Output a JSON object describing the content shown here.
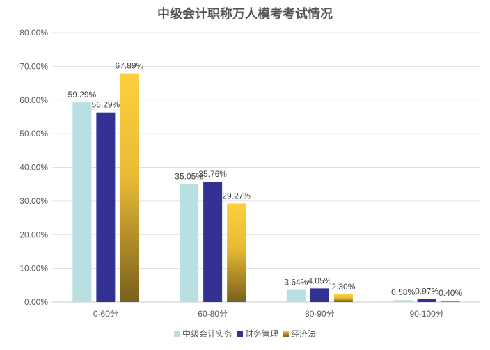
{
  "chart_data": {
    "type": "bar",
    "title": "中级会计职称万人模考考试情况",
    "categories": [
      "0-60分",
      "60-80分",
      "80-90分",
      "90-100分"
    ],
    "series": [
      {
        "name": "中级会计实务",
        "values": [
          59.29,
          35.05,
          3.64,
          0.58
        ],
        "labels": [
          "59.29%",
          "35.05%",
          "3.64%",
          "0.58%"
        ],
        "color": "#b8dfe1"
      },
      {
        "name": "财务管理",
        "values": [
          56.29,
          35.76,
          4.05,
          0.97
        ],
        "labels": [
          "56.29%",
          "35.76%",
          "4.05%",
          "0.97%"
        ],
        "color": "#343194"
      },
      {
        "name": "经济法",
        "values": [
          67.89,
          29.27,
          2.3,
          0.4
        ],
        "labels": [
          "67.89%",
          "29.27%",
          "2.30%",
          "0.40%"
        ],
        "color": "#fcd03c",
        "color_bottom": "#7a5f1c"
      }
    ],
    "yticks": [
      "0.00%",
      "10.00%",
      "20.00%",
      "30.00%",
      "40.00%",
      "50.00%",
      "60.00%",
      "70.00%",
      "80.00%"
    ],
    "ylim": [
      0,
      80
    ],
    "grid": true,
    "legend": "bottom"
  }
}
